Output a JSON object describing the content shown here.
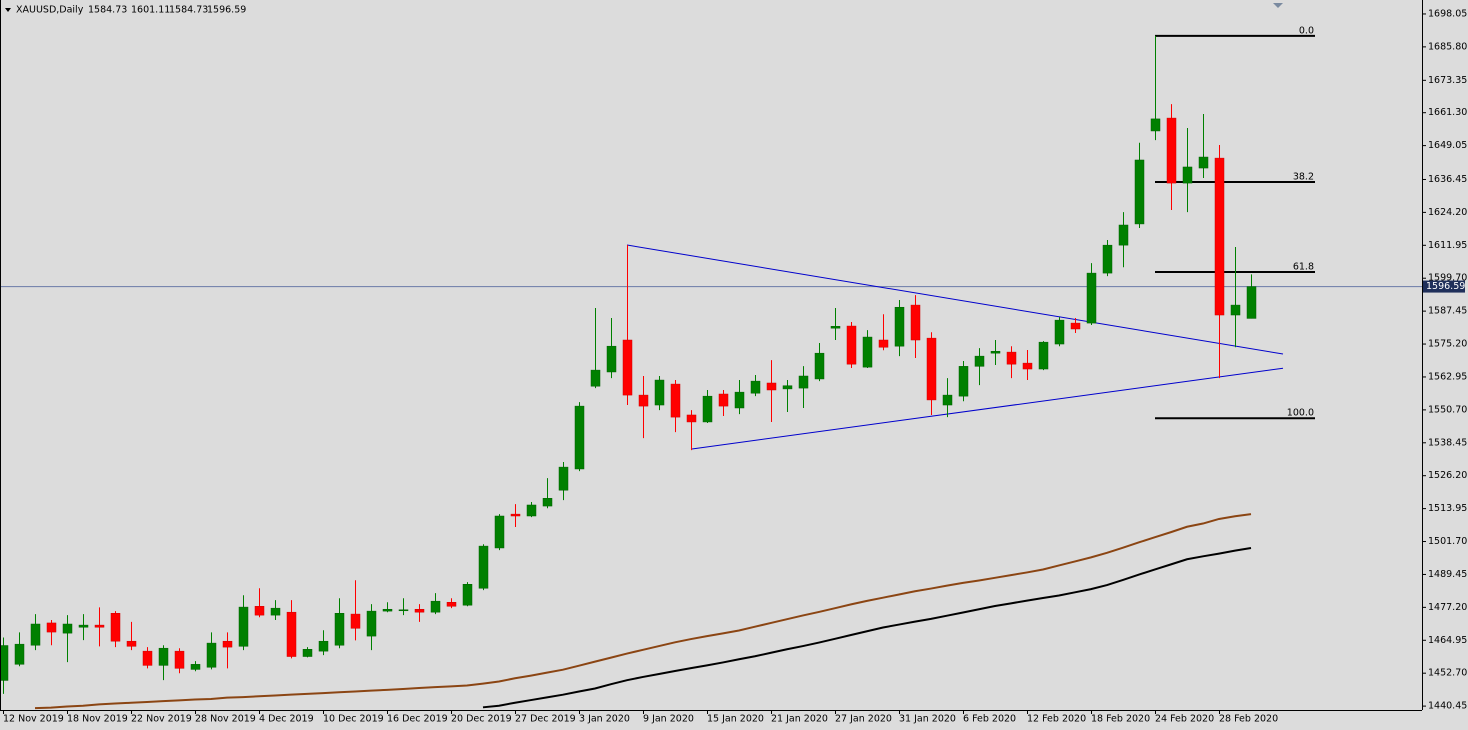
{
  "chart_data": {
    "type": "candlestick",
    "symbol": "XAUUSD,Daily",
    "header_values": [
      1584.73,
      1601.11,
      1584.73,
      1596.59
    ],
    "categories": [
      "12 Nov 2019",
      null,
      null,
      null,
      "18 Nov 2019",
      null,
      null,
      null,
      "22 Nov 2019",
      null,
      null,
      null,
      "28 Nov 2019",
      null,
      null,
      null,
      "4 Dec 2019",
      null,
      null,
      null,
      "10 Dec 2019",
      null,
      null,
      null,
      "16 Dec 2019",
      null,
      null,
      null,
      "20 Dec 2019",
      null,
      null,
      null,
      "27 Dec 2019",
      null,
      null,
      null,
      "3 Jan 2020",
      null,
      null,
      null,
      "9 Jan 2020",
      null,
      null,
      null,
      "15 Jan 2020",
      null,
      null,
      null,
      "21 Jan 2020",
      null,
      null,
      null,
      "27 Jan 2020",
      null,
      null,
      null,
      "31 Jan 2020",
      null,
      null,
      null,
      "6 Feb 2020",
      null,
      null,
      null,
      "12 Feb 2020",
      null,
      null,
      null,
      "18 Feb 2020",
      null,
      null,
      null,
      "24 Feb 2020",
      null,
      null,
      null,
      "28 Feb 2020",
      null,
      null
    ],
    "open": [
      1450,
      1456.0,
      1463.1,
      1471.4,
      1467.6,
      1469.8,
      1470.6,
      1475.0,
      1464.6,
      1460.9,
      1455.6,
      1460.9,
      1454.1,
      1454.9,
      1464.6,
      1462.7,
      1477.6,
      1474.3,
      1475.4,
      1458.9,
      1460.9,
      1463.1,
      1474.7,
      1466.5,
      1475.8,
      1476.1,
      1476.5,
      1475.4,
      1479.1,
      1478.0,
      1484.3,
      1499.3,
      1511.9,
      1511.2,
      1514.9,
      1520.8,
      1528.7,
      1559.5,
      1564.8,
      1576.7,
      1556.2,
      1552.5,
      1560.3,
      1548.8,
      1546.2,
      1556.6,
      1551.4,
      1556.9,
      1560.7,
      1558.5,
      1558.8,
      1562.2,
      1581.1,
      1581.9,
      1566.6,
      1576.7,
      1574.4,
      1589.7,
      1577.4,
      1552.5,
      1555.8,
      1566.9,
      1571.8,
      1572.2,
      1568.1,
      1565.9,
      1575.2,
      1583.0,
      1583.0,
      1601.6,
      1612.0,
      1619.9,
      1654.5,
      1659.3,
      1635.1,
      1640.7,
      1644.4,
      1586.0,
      1584.73
    ],
    "high": [
      1466,
      1467.9,
      1474.7,
      1472.5,
      1474.3,
      1474.7,
      1477.2,
      1475.8,
      1471.8,
      1462.4,
      1463.1,
      1462.0,
      1457.2,
      1467.9,
      1467.9,
      1481.7,
      1484.3,
      1479.9,
      1479.9,
      1462.4,
      1468.7,
      1480.6,
      1487.3,
      1478.4,
      1479.1,
      1480.6,
      1478.4,
      1482.5,
      1480.6,
      1486.6,
      1500.7,
      1511.9,
      1515.6,
      1516.4,
      1525.3,
      1531.3,
      1553.6,
      1588.6,
      1584.9,
      1612.05,
      1563.3,
      1563.3,
      1561.8,
      1550.6,
      1558.1,
      1558.1,
      1561.8,
      1563.7,
      1569.2,
      1561.8,
      1567.0,
      1575.6,
      1588.6,
      1583.4,
      1580.4,
      1586.3,
      1591.6,
      1593.4,
      1579.6,
      1562.5,
      1568.9,
      1573.7,
      1576.7,
      1574.4,
      1573.0,
      1576.3,
      1585.2,
      1584.9,
      1605.3,
      1613.9,
      1624.3,
      1650.1,
      1689.9,
      1664.5,
      1655.6,
      1660.8,
      1649.3,
      1611.3,
      1601.11
    ],
    "low": [
      1445,
      1455.3,
      1461.3,
      1463.1,
      1456.8,
      1465.0,
      1462.7,
      1462.4,
      1461.3,
      1454.5,
      1450.1,
      1452.7,
      1453.4,
      1454.1,
      1454.5,
      1461.3,
      1473.5,
      1472.5,
      1458.2,
      1458.6,
      1459.4,
      1462.0,
      1464.9,
      1461.3,
      1475.4,
      1474.3,
      1471.8,
      1474.7,
      1476.9,
      1477.6,
      1483.6,
      1498.5,
      1507.1,
      1510.8,
      1514.1,
      1517.1,
      1527.9,
      1558.8,
      1562.5,
      1552.5,
      1540.2,
      1550.6,
      1542.4,
      1535.7,
      1545.8,
      1548.4,
      1549.1,
      1555.8,
      1546.2,
      1549.9,
      1551.4,
      1561.4,
      1576.7,
      1566.3,
      1566.3,
      1572.9,
      1570.7,
      1570.0,
      1548.8,
      1548.0,
      1553.9,
      1559.9,
      1567.4,
      1562.5,
      1561.8,
      1565.5,
      1574.4,
      1579.3,
      1582.3,
      1600.5,
      1603.8,
      1618.4,
      1651.1,
      1625.1,
      1624.3,
      1637.0,
      1562.5,
      1574.0,
      1584.73
    ],
    "close": [
      1463,
      1463.5,
      1471.0,
      1468.0,
      1471.0,
      1470.6,
      1469.8,
      1464.6,
      1462.7,
      1455.6,
      1462.0,
      1454.5,
      1456.0,
      1463.9,
      1462.4,
      1477.3,
      1474.3,
      1476.9,
      1458.9,
      1461.6,
      1464.6,
      1475.0,
      1469.4,
      1475.8,
      1476.5,
      1476.3,
      1475.4,
      1479.5,
      1477.6,
      1485.8,
      1500.0,
      1511.2,
      1511.2,
      1515.3,
      1517.8,
      1529.4,
      1552.1,
      1565.5,
      1574.4,
      1556.2,
      1552.1,
      1561.8,
      1548.0,
      1546.2,
      1555.8,
      1552.1,
      1557.3,
      1561.4,
      1558.1,
      1559.7,
      1563.3,
      1571.8,
      1581.8,
      1567.7,
      1577.8,
      1574.0,
      1588.9,
      1576.7,
      1554.4,
      1556.2,
      1566.9,
      1570.7,
      1572.5,
      1567.7,
      1565.9,
      1575.9,
      1584.1,
      1580.8,
      1601.6,
      1612.0,
      1619.5,
      1643.7,
      1659.0,
      1635.1,
      1641.1,
      1644.8,
      1586.0,
      1589.7,
      1596.59
    ],
    "up_color": "#008000",
    "down_color": "#ff0000",
    "lines": [
      {
        "color": "#8b4513",
        "values": [
          null,
          null,
          1439.7,
          1439.9,
          1440.3,
          1440.6,
          1441.1,
          1441.4,
          1441.7,
          1442.0,
          1442.3,
          1442.6,
          1442.9,
          1443.1,
          1443.6,
          1443.8,
          1444.1,
          1444.4,
          1444.7,
          1445.0,
          1445.3,
          1445.6,
          1445.9,
          1446.2,
          1446.5,
          1446.8,
          1447.2,
          1447.5,
          1447.8,
          1448.1,
          1448.8,
          1449.6,
          1450.8,
          1451.8,
          1452.9,
          1454.0,
          1455.5,
          1457.0,
          1458.5,
          1460.0,
          1461.4,
          1462.8,
          1464.2,
          1465.4,
          1466.5,
          1467.5,
          1468.6,
          1470.0,
          1471.4,
          1472.8,
          1474.2,
          1475.5,
          1476.9,
          1478.3,
          1479.6,
          1480.8,
          1482.0,
          1483.2,
          1484.2,
          1485.3,
          1486.3,
          1487.2,
          1488.2,
          1489.2,
          1490.2,
          1491.3,
          1492.8,
          1494.3,
          1495.8,
          1497.5,
          1499.4,
          1501.4,
          1503.3,
          1505.2,
          1507.2,
          1508.4,
          1510.1,
          1511.1,
          1511.9
        ]
      },
      {
        "color": "#000000",
        "values": [
          null,
          null,
          null,
          null,
          null,
          null,
          null,
          null,
          null,
          null,
          null,
          null,
          null,
          null,
          null,
          null,
          null,
          null,
          null,
          null,
          null,
          null,
          null,
          null,
          null,
          null,
          null,
          null,
          null,
          null,
          1440.0,
          1440.6,
          1441.7,
          1442.7,
          1443.7,
          1444.7,
          1445.9,
          1447.0,
          1448.6,
          1450.1,
          1451.3,
          1452.4,
          1453.5,
          1454.6,
          1455.6,
          1456.7,
          1457.9,
          1459.0,
          1460.3,
          1461.6,
          1462.8,
          1464.1,
          1465.5,
          1466.9,
          1468.3,
          1469.7,
          1470.8,
          1471.9,
          1472.9,
          1474.1,
          1475.3,
          1476.5,
          1477.7,
          1478.7,
          1479.7,
          1480.7,
          1481.6,
          1482.8,
          1484.0,
          1485.5,
          1487.4,
          1489.4,
          1491.3,
          1493.2,
          1495.1,
          1496.2,
          1497.2,
          1498.3,
          1499.3
        ]
      }
    ],
    "trendlines": [
      {
        "color": "#0000cc",
        "x": [
          39,
          80
        ],
        "y": [
          1612.05,
          1571.5
        ]
      },
      {
        "color": "#0000cc",
        "x": [
          43,
          80
        ],
        "y": [
          1536.1,
          1566.2
        ]
      }
    ],
    "fibonacci": {
      "color": "#000000",
      "x": [
        72,
        82
      ],
      "levels": [
        {
          "label": "0.0",
          "price": 1689.9
        },
        {
          "label": "38.2",
          "price": 1635.5
        },
        {
          "label": "61.8",
          "price": 1602.0
        },
        {
          "label": "100.0",
          "price": 1547.6
        }
      ]
    },
    "price_line": 1596.59,
    "price_line_color": "#6a7aa8",
    "ylim": [
      1439,
      1702.5
    ],
    "yticks": [
      1698.05,
      {
        "value": 1685.8,
        "label": "1685.80"
      },
      1673.35,
      {
        "value": 1661.3,
        "label": "1661.30"
      },
      1649.05,
      1636.45,
      {
        "value": 1624.2,
        "label": "1624.20"
      },
      1611.95,
      {
        "value": 1599.7,
        "label": "1599.70"
      },
      1587.45,
      {
        "value": 1575.2,
        "label": "1575.20"
      },
      1562.95,
      {
        "value": 1550.7,
        "label": "1550.70"
      },
      1538.45,
      {
        "value": 1526.2,
        "label": "1526.20"
      },
      1513.95,
      {
        "value": 1501.7,
        "label": "1501.70"
      },
      1489.45,
      {
        "value": 1477.2,
        "label": "1477.20"
      },
      1464.95,
      {
        "value": 1452.7,
        "label": "1452.70"
      },
      1440.45
    ]
  }
}
